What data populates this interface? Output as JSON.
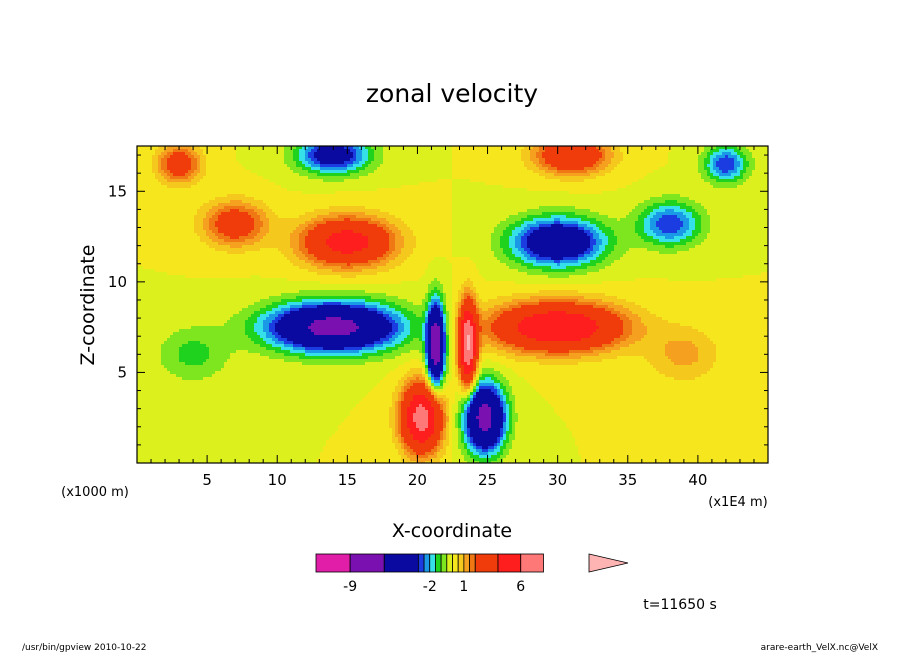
{
  "chart_data": {
    "type": "heatmap",
    "title": "zonal velocity",
    "xlabel": "X-coordinate",
    "ylabel": "Z-coordinate",
    "x_unit": "(x1E4 m)",
    "y_unit": "(x1000 m)",
    "xlim": [
      0,
      45
    ],
    "ylim": [
      0,
      17.5
    ],
    "x_ticks": [
      {
        "value": 5,
        "label": "5"
      },
      {
        "value": 10,
        "label": "10"
      },
      {
        "value": 15,
        "label": "15"
      },
      {
        "value": 20,
        "label": "20"
      },
      {
        "value": 25,
        "label": "25"
      },
      {
        "value": 30,
        "label": "30"
      },
      {
        "value": 35,
        "label": "35"
      },
      {
        "value": 40,
        "label": "40"
      }
    ],
    "y_ticks": [
      {
        "value": 5,
        "label": "5"
      },
      {
        "value": 10,
        "label": "10"
      },
      {
        "value": 15,
        "label": "15"
      }
    ],
    "colorbar": {
      "levels": [
        -12,
        -9,
        -6,
        -3,
        -2.5,
        -2,
        -1.5,
        -1,
        -0.5,
        0,
        0.5,
        1,
        1.5,
        2,
        4,
        6,
        8,
        12
      ],
      "colors": [
        "#e01ea8",
        "#7a10b0",
        "#0a0aa0",
        "#1a3ce0",
        "#1a9ae6",
        "#35e0e8",
        "#1ed21e",
        "#7ee61e",
        "#dcf01e",
        "#f5e61e",
        "#f5c81e",
        "#f5a01e",
        "#f07814",
        "#f03c0a",
        "#ff1e1e",
        "#ff7878"
      ],
      "over_color": "#ffb4b4",
      "tick_labels": [
        {
          "value": -9,
          "label": "-9"
        },
        {
          "value": -2,
          "label": "-2"
        },
        {
          "value": 1,
          "label": "1"
        },
        {
          "value": 6,
          "label": "6"
        }
      ]
    },
    "features": [
      {
        "x": 14,
        "z": 7.5,
        "sx": 4.5,
        "sz": 1.3,
        "u": -7
      },
      {
        "x": 30,
        "z": 7.5,
        "sx": 4.5,
        "sz": 1.3,
        "u": 6
      },
      {
        "x": 15,
        "z": 12.2,
        "sx": 3.2,
        "sz": 1.3,
        "u": 5
      },
      {
        "x": 30,
        "z": 12.2,
        "sx": 3.2,
        "sz": 1.3,
        "u": -5
      },
      {
        "x": 7,
        "z": 13.2,
        "sx": 2.2,
        "sz": 1.2,
        "u": 3
      },
      {
        "x": 38,
        "z": 13.2,
        "sx": 2.2,
        "sz": 1.2,
        "u": -3
      },
      {
        "x": 20.3,
        "z": 2.5,
        "sx": 1.4,
        "sz": 1.8,
        "u": 7
      },
      {
        "x": 24.8,
        "z": 2.5,
        "sx": 1.4,
        "sz": 1.8,
        "u": -7
      },
      {
        "x": 21.3,
        "z": 6.5,
        "sx": 0.6,
        "sz": 2.2,
        "u": -8
      },
      {
        "x": 23.6,
        "z": 6.5,
        "sx": 0.6,
        "sz": 2.2,
        "u": 8
      },
      {
        "x": 14,
        "z": 17.0,
        "sx": 2.5,
        "sz": 1.0,
        "u": -4
      },
      {
        "x": 31,
        "z": 17.0,
        "sx": 2.5,
        "sz": 1.0,
        "u": 4
      },
      {
        "x": 3,
        "z": 16.5,
        "sx": 1.5,
        "sz": 1.0,
        "u": 3
      },
      {
        "x": 42,
        "z": 16.5,
        "sx": 1.5,
        "sz": 1.0,
        "u": -3
      },
      {
        "x": 4,
        "z": 6,
        "sx": 2.5,
        "sz": 1.5,
        "u": -1.2
      },
      {
        "x": 39,
        "z": 6,
        "sx": 2.5,
        "sz": 1.5,
        "u": 1.2
      }
    ]
  },
  "time_label": "t=11650 s",
  "footer": {
    "left": "/usr/bin/gpview 2010-10-22",
    "right": "arare-earth_VelX.nc@VelX"
  }
}
